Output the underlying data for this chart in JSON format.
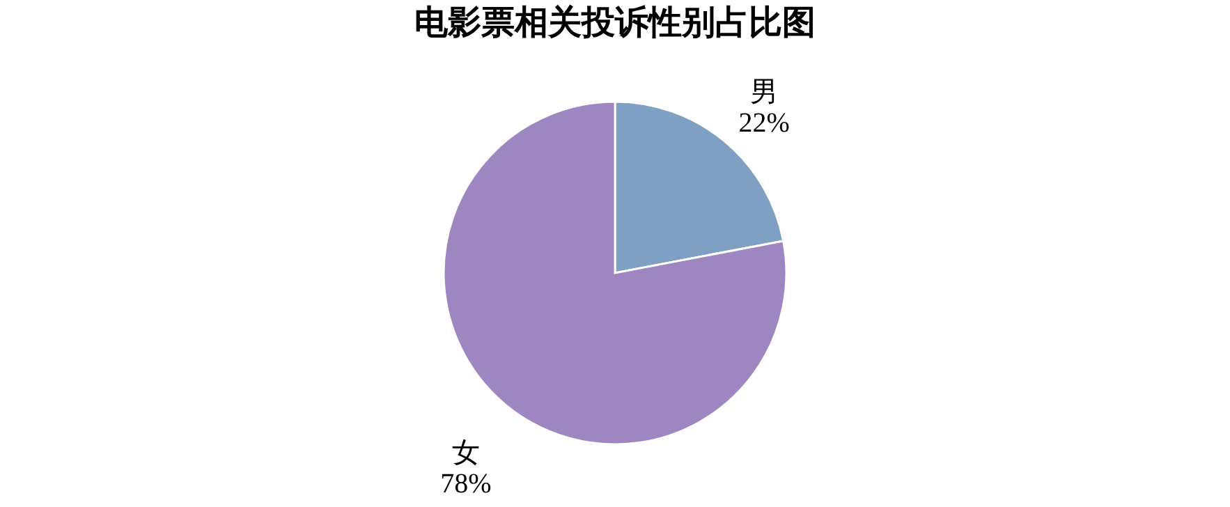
{
  "chart_data": {
    "type": "pie",
    "title": "电影票相关投诉性别占比图",
    "categories": [
      "男",
      "女"
    ],
    "values": [
      22,
      78
    ],
    "colors": [
      "#7f9fc3",
      "#9e86c1"
    ],
    "value_labels": [
      "22%",
      "78%"
    ],
    "legend": false
  }
}
